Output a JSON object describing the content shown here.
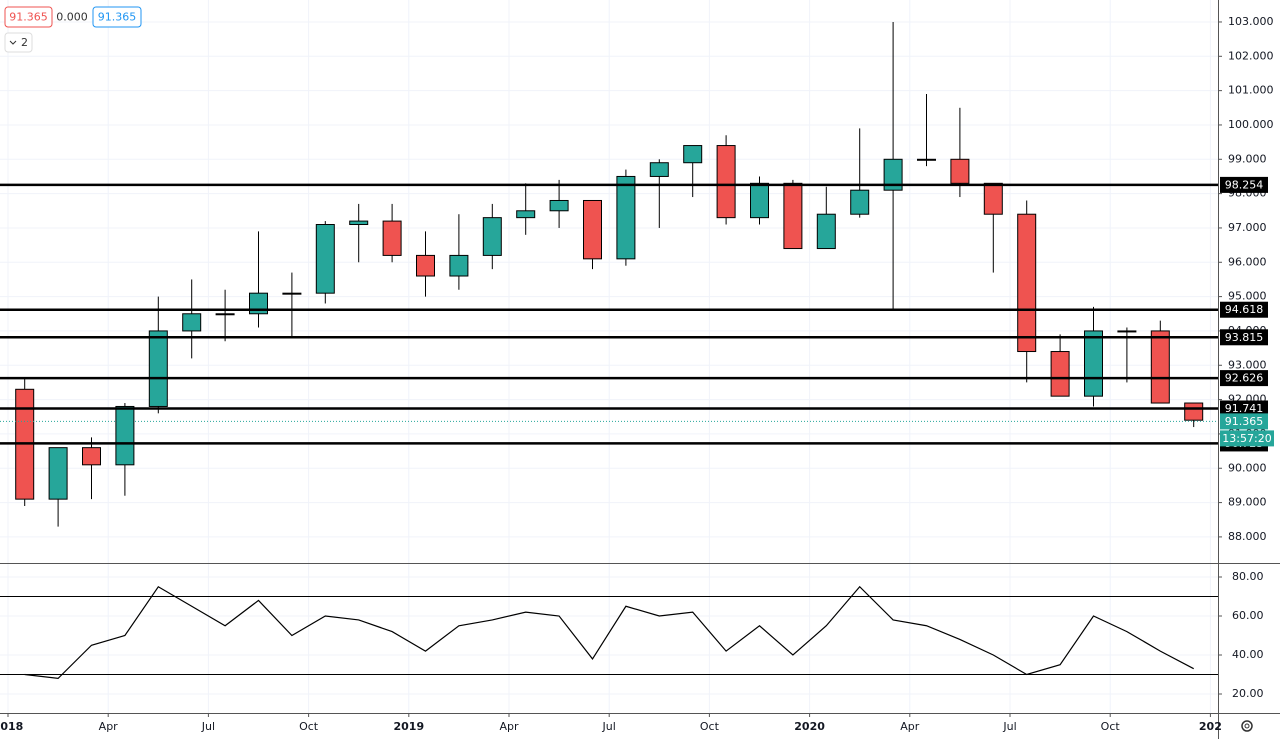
{
  "chart_data": [
    {
      "type": "candlestick",
      "legend_values": [
        {
          "value": 91.365,
          "label": "91.365"
        },
        {
          "value": 0,
          "label": "0.000"
        },
        {
          "value": 91.365,
          "label": "91.365"
        }
      ],
      "indicator_count": 2,
      "x": [
        "2018-01",
        "2018-02",
        "2018-03",
        "2018-04",
        "2018-05",
        "2018-06",
        "2018-07",
        "2018-08",
        "2018-09",
        "2018-10",
        "2018-11",
        "2018-12",
        "2019-01",
        "2019-02",
        "2019-03",
        "2019-04",
        "2019-05",
        "2019-06",
        "2019-07",
        "2019-08",
        "2019-09",
        "2019-10",
        "2019-11",
        "2019-12",
        "2020-01",
        "2020-02",
        "2020-03",
        "2020-04",
        "2020-05",
        "2020-06",
        "2020-07",
        "2020-08",
        "2020-09",
        "2020-10",
        "2020-11",
        "2020-12"
      ],
      "open": [
        92.3,
        89.1,
        90.6,
        90.1,
        91.8,
        94.0,
        94.5,
        94.5,
        95.1,
        95.1,
        97.1,
        97.2,
        96.2,
        95.6,
        96.2,
        97.3,
        97.5,
        97.8,
        96.1,
        98.5,
        98.9,
        99.4,
        97.3,
        98.3,
        96.4,
        97.4,
        98.1,
        99.0,
        99.0,
        98.3,
        97.4,
        93.4,
        92.1,
        94.0,
        94.0,
        91.9
      ],
      "high": [
        92.6,
        90.6,
        90.9,
        91.9,
        95.0,
        95.5,
        95.2,
        96.9,
        95.7,
        97.2,
        97.7,
        97.7,
        96.9,
        97.4,
        97.7,
        98.3,
        98.4,
        97.8,
        98.7,
        99.0,
        99.4,
        99.7,
        98.5,
        98.4,
        98.2,
        99.9,
        103.0,
        100.9,
        100.5,
        98.3,
        97.8,
        93.9,
        94.7,
        94.1,
        94.3,
        91.9
      ],
      "low": [
        88.9,
        88.3,
        89.1,
        89.2,
        91.6,
        93.2,
        93.7,
        94.1,
        93.8,
        94.8,
        96.0,
        96.0,
        95.0,
        95.2,
        95.8,
        96.8,
        97.0,
        95.8,
        95.9,
        97.0,
        97.9,
        97.1,
        97.1,
        96.4,
        96.4,
        97.3,
        94.6,
        98.8,
        97.9,
        95.7,
        92.5,
        92.1,
        91.8,
        92.5,
        91.9,
        91.2
      ],
      "close": [
        89.1,
        90.6,
        90.1,
        91.8,
        94.0,
        94.5,
        94.5,
        95.1,
        95.1,
        97.1,
        97.2,
        96.2,
        95.6,
        96.2,
        97.3,
        97.5,
        97.8,
        96.1,
        98.5,
        98.9,
        99.4,
        97.3,
        98.3,
        96.4,
        97.4,
        98.1,
        99.0,
        99.0,
        98.3,
        97.4,
        93.4,
        92.1,
        94.0,
        94.0,
        91.9,
        91.4
      ],
      "up_color": "#26a69a",
      "down_color": "#ef5350",
      "border_color": "#000000",
      "ylim": [
        87.24,
        103.64
      ],
      "yticks": [
        {
          "value": 88,
          "label": "88.000"
        },
        {
          "value": 89,
          "label": "89.000"
        },
        {
          "value": 90,
          "label": "90.000"
        },
        {
          "value": 91,
          "label": "91.000"
        },
        {
          "value": 92,
          "label": "92.000"
        },
        {
          "value": 93,
          "label": "93.000"
        },
        {
          "value": 94,
          "label": "94.000"
        },
        {
          "value": 95,
          "label": "95.000"
        },
        {
          "value": 96,
          "label": "96.000"
        },
        {
          "value": 97,
          "label": "97.000"
        },
        {
          "value": 98,
          "label": "98.000"
        },
        {
          "value": 99,
          "label": "99.000"
        },
        {
          "value": 100,
          "label": "100.000"
        },
        {
          "value": 101,
          "label": "101.000"
        },
        {
          "value": 102,
          "label": "102.000"
        },
        {
          "value": 103,
          "label": "103.000"
        }
      ],
      "levels": [
        98.254,
        94.618,
        93.815,
        92.626,
        91.741,
        90.723
      ],
      "last_price": 91.365,
      "countdown": "13:57:20",
      "grid": true
    },
    {
      "type": "line",
      "x": [
        "2018-01",
        "2018-02",
        "2018-03",
        "2018-04",
        "2018-05",
        "2018-06",
        "2018-07",
        "2018-08",
        "2018-09",
        "2018-10",
        "2018-11",
        "2018-12",
        "2019-01",
        "2019-02",
        "2019-03",
        "2019-04",
        "2019-05",
        "2019-06",
        "2019-07",
        "2019-08",
        "2019-09",
        "2019-10",
        "2019-11",
        "2019-12",
        "2020-01",
        "2020-02",
        "2020-03",
        "2020-04",
        "2020-05",
        "2020-06",
        "2020-07",
        "2020-08",
        "2020-09",
        "2020-10",
        "2020-11",
        "2020-12"
      ],
      "values": [
        30,
        28,
        45,
        50,
        75,
        65,
        55,
        68,
        50,
        60,
        58,
        52,
        42,
        55,
        58,
        62,
        60,
        38,
        65,
        60,
        62,
        42,
        55,
        40,
        55,
        75,
        58,
        55,
        48,
        40,
        30,
        35,
        60,
        52,
        42,
        33
      ],
      "color": "#000000",
      "bands": [
        70,
        30
      ],
      "ylim": [
        10.26,
        86.67
      ],
      "yticks": [
        {
          "value": 20,
          "label": "20.00"
        },
        {
          "value": 40,
          "label": "40.00"
        },
        {
          "value": 60,
          "label": "60.00"
        },
        {
          "value": 80,
          "label": "80.00"
        }
      ],
      "xticks": [
        {
          "value": "2018-01",
          "label": "2018"
        },
        {
          "value": "2018-04",
          "label": "Apr"
        },
        {
          "value": "2018-07",
          "label": "Jul"
        },
        {
          "value": "2018-10",
          "label": "Oct"
        },
        {
          "value": "2019-01",
          "label": "2019"
        },
        {
          "value": "2019-04",
          "label": "Apr"
        },
        {
          "value": "2019-07",
          "label": "Jul"
        },
        {
          "value": "2019-10",
          "label": "Oct"
        },
        {
          "value": "2020-01",
          "label": "2020"
        },
        {
          "value": "2020-04",
          "label": "Apr"
        },
        {
          "value": "2020-07",
          "label": "Jul"
        },
        {
          "value": "2020-10",
          "label": "Oct"
        },
        {
          "value": "2021-01",
          "label": "202"
        }
      ],
      "grid": true
    }
  ]
}
